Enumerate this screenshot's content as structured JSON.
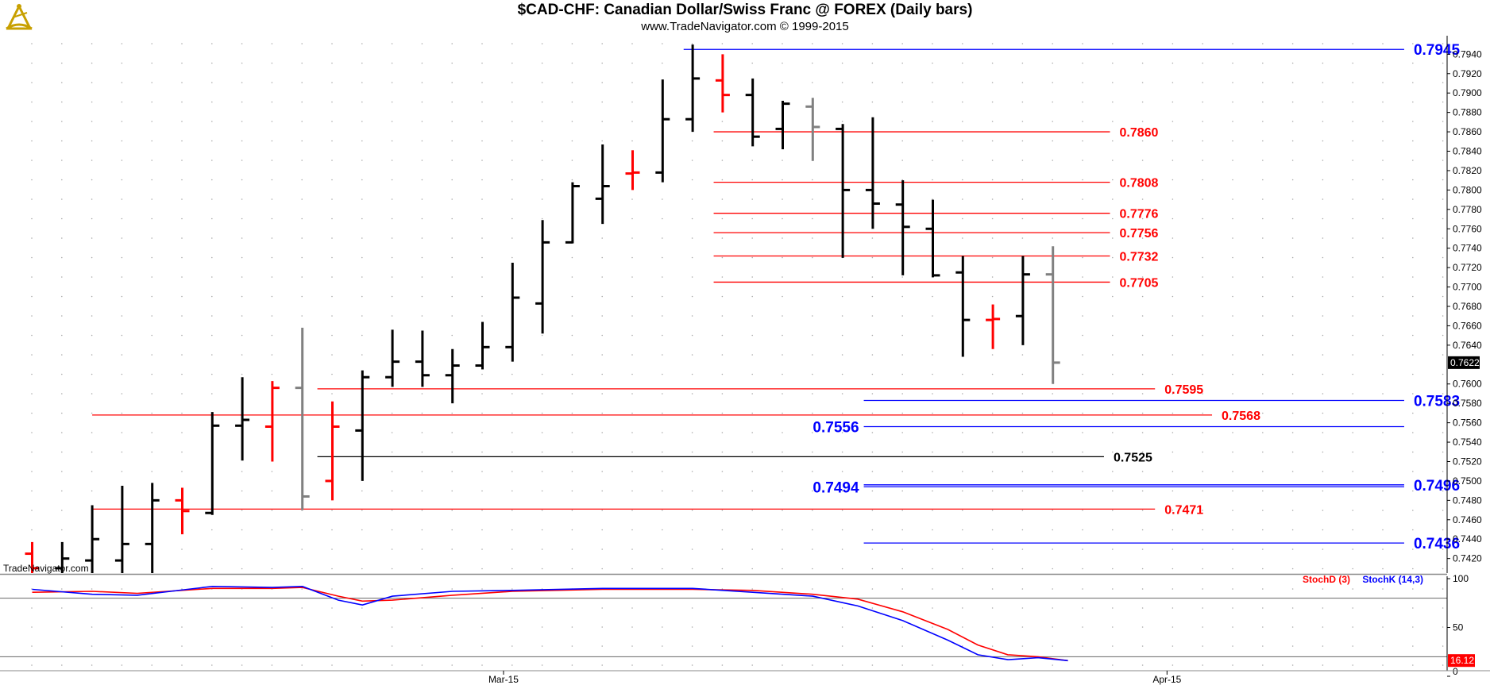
{
  "header": {
    "title": "$CAD-CHF:  Canadian Dollar/Swiss Franc @ FOREX  (Daily bars)",
    "subtitle": "www.TradeNavigator.com © 1999-2015",
    "watermark": "TradeNavigator.com"
  },
  "colors": {
    "up": "#000000",
    "down": "#ff0000",
    "neutral": "#808080",
    "red_line": "#ff0000",
    "blue_line": "#0000ff",
    "black_line": "#000000",
    "grid_dot": "#aaaaaa",
    "stoch_d": "#ff0000",
    "stoch_k": "#0000ff"
  },
  "chart_data": [
    {
      "type": "ohlc",
      "panel": "price",
      "ylim": [
        0.7405,
        0.7955
      ],
      "y_ticks": [
        "0.7940",
        "0.7920",
        "0.7900",
        "0.7880",
        "0.7860",
        "0.7840",
        "0.7820",
        "0.7800",
        "0.7780",
        "0.7760",
        "0.7740",
        "0.7720",
        "0.7700",
        "0.7680",
        "0.7660",
        "0.7640",
        "0.7600",
        "0.7580",
        "0.7560",
        "0.7540",
        "0.7520",
        "0.7500",
        "0.7480",
        "0.7460",
        "0.7440",
        "0.7420"
      ],
      "last_price": "0.7622",
      "x_labels": [
        {
          "bar": 15.7,
          "label": "Mar-15"
        },
        {
          "bar": 37.8,
          "label": "Apr-15"
        }
      ],
      "bars": [
        {
          "o": 0.7425,
          "h": 0.7437,
          "l": 0.7405,
          "c": 0.741,
          "color": "down"
        },
        {
          "o": 0.741,
          "h": 0.7437,
          "l": 0.7405,
          "c": 0.742,
          "color": "up"
        },
        {
          "o": 0.7418,
          "h": 0.7475,
          "l": 0.7405,
          "c": 0.744,
          "color": "up"
        },
        {
          "o": 0.7418,
          "h": 0.7495,
          "l": 0.7405,
          "c": 0.7435,
          "color": "up"
        },
        {
          "o": 0.7435,
          "h": 0.7498,
          "l": 0.7405,
          "c": 0.748,
          "color": "up"
        },
        {
          "o": 0.748,
          "h": 0.7493,
          "l": 0.7445,
          "c": 0.7469,
          "color": "down"
        },
        {
          "o": 0.7467,
          "h": 0.7571,
          "l": 0.7465,
          "c": 0.7557,
          "color": "up"
        },
        {
          "o": 0.7557,
          "h": 0.7607,
          "l": 0.7521,
          "c": 0.7563,
          "color": "up"
        },
        {
          "o": 0.7556,
          "h": 0.7603,
          "l": 0.752,
          "c": 0.7596,
          "color": "down"
        },
        {
          "o": 0.7596,
          "h": 0.7658,
          "l": 0.747,
          "c": 0.7484,
          "color": "neutral"
        },
        {
          "o": 0.75,
          "h": 0.7582,
          "l": 0.748,
          "c": 0.7556,
          "color": "down"
        },
        {
          "o": 0.7552,
          "h": 0.7614,
          "l": 0.75,
          "c": 0.7607,
          "color": "up"
        },
        {
          "o": 0.7607,
          "h": 0.7656,
          "l": 0.7597,
          "c": 0.7623,
          "color": "up"
        },
        {
          "o": 0.7623,
          "h": 0.7655,
          "l": 0.7597,
          "c": 0.7609,
          "color": "up"
        },
        {
          "o": 0.7609,
          "h": 0.7636,
          "l": 0.758,
          "c": 0.7619,
          "color": "up"
        },
        {
          "o": 0.7619,
          "h": 0.7664,
          "l": 0.7615,
          "c": 0.7638,
          "color": "up"
        },
        {
          "o": 0.7638,
          "h": 0.7725,
          "l": 0.7623,
          "c": 0.7689,
          "color": "up"
        },
        {
          "o": 0.7683,
          "h": 0.7769,
          "l": 0.7652,
          "c": 0.7746,
          "color": "up"
        },
        {
          "o": 0.7746,
          "h": 0.7808,
          "l": 0.7745,
          "c": 0.7804,
          "color": "up"
        },
        {
          "o": 0.7791,
          "h": 0.7847,
          "l": 0.7765,
          "c": 0.7804,
          "color": "up"
        },
        {
          "o": 0.7817,
          "h": 0.7841,
          "l": 0.78,
          "c": 0.7818,
          "color": "down"
        },
        {
          "o": 0.7818,
          "h": 0.7914,
          "l": 0.7808,
          "c": 0.7873,
          "color": "up"
        },
        {
          "o": 0.7873,
          "h": 0.795,
          "l": 0.786,
          "c": 0.7915,
          "color": "up"
        },
        {
          "o": 0.7913,
          "h": 0.794,
          "l": 0.788,
          "c": 0.7898,
          "color": "down"
        },
        {
          "o": 0.7898,
          "h": 0.7915,
          "l": 0.7845,
          "c": 0.7855,
          "color": "up"
        },
        {
          "o": 0.7863,
          "h": 0.7892,
          "l": 0.7842,
          "c": 0.7889,
          "color": "up"
        },
        {
          "o": 0.7886,
          "h": 0.7895,
          "l": 0.783,
          "c": 0.7865,
          "color": "neutral"
        },
        {
          "o": 0.7863,
          "h": 0.7868,
          "l": 0.773,
          "c": 0.78,
          "color": "up"
        },
        {
          "o": 0.78,
          "h": 0.7875,
          "l": 0.776,
          "c": 0.7786,
          "color": "up"
        },
        {
          "o": 0.7785,
          "h": 0.781,
          "l": 0.7712,
          "c": 0.7762,
          "color": "up"
        },
        {
          "o": 0.776,
          "h": 0.779,
          "l": 0.771,
          "c": 0.7712,
          "color": "up"
        },
        {
          "o": 0.7715,
          "h": 0.7732,
          "l": 0.7628,
          "c": 0.7666,
          "color": "up"
        },
        {
          "o": 0.7666,
          "h": 0.7682,
          "l": 0.7636,
          "c": 0.7667,
          "color": "down"
        },
        {
          "o": 0.767,
          "h": 0.7732,
          "l": 0.764,
          "c": 0.7713,
          "color": "up"
        },
        {
          "o": 0.7713,
          "h": 0.7742,
          "l": 0.76,
          "c": 0.7622,
          "color": "neutral"
        }
      ],
      "levels": [
        {
          "value": 0.7945,
          "label": "0.7945",
          "color": "blue",
          "from_bar": 21.7,
          "to_bar": 45.7,
          "label_side": "right"
        },
        {
          "value": 0.786,
          "label": "0.7860",
          "color": "red",
          "from_bar": 22.7,
          "to_bar": 35.9,
          "label_side": "right"
        },
        {
          "value": 0.7808,
          "label": "0.7808",
          "color": "red",
          "from_bar": 22.7,
          "to_bar": 35.9,
          "label_side": "right"
        },
        {
          "value": 0.7776,
          "label": "0.7776",
          "color": "red",
          "from_bar": 22.7,
          "to_bar": 35.9,
          "label_side": "right"
        },
        {
          "value": 0.7756,
          "label": "0.7756",
          "color": "red",
          "from_bar": 22.7,
          "to_bar": 35.9,
          "label_side": "right"
        },
        {
          "value": 0.7732,
          "label": "0.7732",
          "color": "red",
          "from_bar": 22.7,
          "to_bar": 35.9,
          "label_side": "right"
        },
        {
          "value": 0.7705,
          "label": "0.7705",
          "color": "red",
          "from_bar": 22.7,
          "to_bar": 35.9,
          "label_side": "right"
        },
        {
          "value": 0.7595,
          "label": "0.7595",
          "color": "red",
          "from_bar": 9.5,
          "to_bar": 37.4,
          "label_side": "right"
        },
        {
          "value": 0.7583,
          "label": "0.7583",
          "color": "blue",
          "from_bar": 27.7,
          "to_bar": 45.7,
          "label_side": "right"
        },
        {
          "value": 0.7568,
          "label": "0.7568",
          "color": "red",
          "from_bar": 2.0,
          "to_bar": 39.3,
          "label_side": "right"
        },
        {
          "value": 0.7556,
          "label": "0.7556",
          "color": "blue",
          "from_bar": 27.7,
          "to_bar": 45.7,
          "label_side": "left"
        },
        {
          "value": 0.7525,
          "label": "0.7525",
          "color": "black",
          "from_bar": 9.5,
          "to_bar": 35.7,
          "label_side": "right"
        },
        {
          "value": 0.7496,
          "label": "0.7496",
          "color": "blue",
          "from_bar": 27.7,
          "to_bar": 45.7,
          "label_side": "right"
        },
        {
          "value": 0.7494,
          "label": "0.7494",
          "color": "blue",
          "from_bar": 27.7,
          "to_bar": 45.7,
          "label_side": "left"
        },
        {
          "value": 0.7471,
          "label": "0.7471",
          "color": "red",
          "from_bar": 2.0,
          "to_bar": 37.4,
          "label_side": "right"
        },
        {
          "value": 0.7436,
          "label": "0.7436",
          "color": "blue",
          "from_bar": 27.7,
          "to_bar": 45.7,
          "label_side": "right"
        }
      ]
    },
    {
      "type": "line",
      "panel": "stochastic",
      "ylim": [
        0,
        100
      ],
      "y_ticks": [
        "100",
        "50",
        "0"
      ],
      "reference_lines": [
        80,
        20
      ],
      "last_value": "16.12",
      "series": [
        {
          "name": "StochD (3)",
          "color": "red",
          "x": [
            0,
            2,
            3.5,
            6,
            8,
            9,
            10.2,
            11,
            12,
            14,
            16,
            19,
            22,
            24,
            26,
            27.5,
            29,
            30.5,
            31.5,
            32.5,
            33.5,
            34.5
          ],
          "values": [
            86,
            87,
            85,
            90,
            90,
            91,
            82,
            77,
            78,
            83,
            87,
            89,
            89,
            88,
            84,
            79,
            66,
            48,
            32,
            22,
            20,
            16
          ]
        },
        {
          "name": "StochK (14,3)",
          "color": "blue",
          "x": [
            0,
            2,
            3.5,
            6,
            8,
            9,
            10.2,
            11,
            12,
            14,
            16,
            19,
            22,
            24,
            26,
            27.5,
            29,
            30.5,
            31.5,
            32.5,
            33.5,
            34.5
          ],
          "values": [
            89,
            84,
            83,
            92,
            91,
            92,
            78,
            73,
            82,
            87,
            88,
            90,
            90,
            86,
            82,
            72,
            57,
            37,
            22,
            17,
            19,
            16
          ]
        }
      ]
    }
  ]
}
